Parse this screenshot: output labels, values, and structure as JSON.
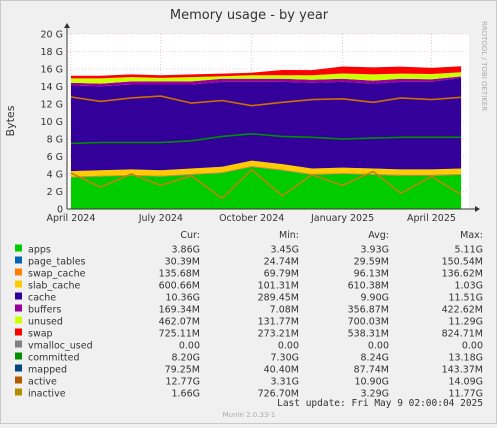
{
  "chart_data": {
    "type": "area",
    "title": "Memory usage - by year",
    "ylabel": "Bytes",
    "watermark": "RRDTOOL / TOBI OETIKER",
    "ylim": [
      0,
      20
    ],
    "yunit": "G",
    "yticks": [
      "0",
      "2 G",
      "4 G",
      "6 G",
      "8 G",
      "10 G",
      "12 G",
      "14 G",
      "16 G",
      "18 G",
      "20 G"
    ],
    "xlim": [
      "2024-03-28",
      "2025-05-09"
    ],
    "xticks": [
      {
        "date": "2024-04-01",
        "label": "April 2024"
      },
      {
        "date": "2024-07-01",
        "label": "July 2024"
      },
      {
        "date": "2024-10-01",
        "label": "October 2024"
      },
      {
        "date": "2025-01-01",
        "label": "January 2025"
      },
      {
        "date": "2025-04-01",
        "label": "April 2025"
      }
    ],
    "x": [
      "2024-04-01",
      "2024-05-01",
      "2024-06-01",
      "2024-07-01",
      "2024-08-01",
      "2024-09-01",
      "2024-10-01",
      "2024-11-01",
      "2024-12-01",
      "2025-01-01",
      "2025-02-01",
      "2025-03-01",
      "2025-04-01",
      "2025-05-01"
    ],
    "stack": [
      {
        "name": "apps",
        "color": "#00cc00",
        "values": [
          3.6,
          3.7,
          3.8,
          3.7,
          3.9,
          4.1,
          4.8,
          4.4,
          3.9,
          4.0,
          3.9,
          3.8,
          3.8,
          3.9
        ]
      },
      {
        "name": "page_tables",
        "color": "#0066b3",
        "values": [
          0.03,
          0.03,
          0.03,
          0.03,
          0.03,
          0.03,
          0.03,
          0.03,
          0.03,
          0.03,
          0.03,
          0.03,
          0.03,
          0.03
        ]
      },
      {
        "name": "swap_cache",
        "color": "#ff8000",
        "values": [
          0.1,
          0.1,
          0.1,
          0.1,
          0.1,
          0.1,
          0.1,
          0.1,
          0.1,
          0.1,
          0.1,
          0.1,
          0.1,
          0.1
        ]
      },
      {
        "name": "slab_cache",
        "color": "#ffcc00",
        "values": [
          0.6,
          0.6,
          0.6,
          0.6,
          0.6,
          0.6,
          0.6,
          0.6,
          0.6,
          0.6,
          0.6,
          0.6,
          0.6,
          0.6
        ]
      },
      {
        "name": "cache",
        "color": "#330099",
        "values": [
          9.8,
          9.6,
          9.7,
          9.8,
          9.6,
          9.7,
          9.0,
          9.4,
          9.8,
          9.8,
          9.7,
          10.0,
          10.0,
          10.36
        ]
      },
      {
        "name": "buffers",
        "color": "#990099",
        "values": [
          0.3,
          0.3,
          0.35,
          0.35,
          0.35,
          0.35,
          0.35,
          0.35,
          0.35,
          0.35,
          0.35,
          0.35,
          0.3,
          0.17
        ]
      },
      {
        "name": "unused",
        "color": "#ccff00",
        "values": [
          0.5,
          0.6,
          0.5,
          0.4,
          0.5,
          0.3,
          0.4,
          0.4,
          0.5,
          0.6,
          0.7,
          0.6,
          0.6,
          0.46
        ]
      },
      {
        "name": "swap",
        "color": "#ff0000",
        "values": [
          0.3,
          0.3,
          0.3,
          0.3,
          0.3,
          0.3,
          0.3,
          0.6,
          0.6,
          0.8,
          0.8,
          0.8,
          0.7,
          0.7
        ]
      }
    ],
    "lines": [
      {
        "name": "committed",
        "color": "#008f00",
        "values": [
          7.5,
          7.6,
          7.6,
          7.6,
          7.8,
          8.3,
          8.6,
          8.3,
          8.2,
          8.0,
          8.1,
          8.2,
          8.2,
          8.2
        ]
      },
      {
        "name": "active",
        "color": "#cc7000",
        "values": [
          12.8,
          12.3,
          12.7,
          12.9,
          12.1,
          12.4,
          11.8,
          12.2,
          12.5,
          12.6,
          12.2,
          12.7,
          12.5,
          12.77
        ]
      },
      {
        "name": "inactive",
        "color": "#b8860b",
        "values": [
          4.1,
          2.5,
          4.0,
          2.7,
          3.8,
          1.2,
          4.5,
          1.5,
          3.9,
          2.7,
          4.3,
          1.8,
          3.7,
          1.66
        ]
      }
    ],
    "legend_header": {
      "cur": "Cur:",
      "min": "Min:",
      "avg": "Avg:",
      "max": "Max:"
    },
    "legend": [
      {
        "name": "apps",
        "color": "#00cc00",
        "cur": "3.86G",
        "min": "3.45G",
        "avg": "3.93G",
        "max": "5.11G"
      },
      {
        "name": "page_tables",
        "color": "#0066b3",
        "cur": "30.39M",
        "min": "24.74M",
        "avg": "29.59M",
        "max": "150.54M"
      },
      {
        "name": "swap_cache",
        "color": "#ff8000",
        "cur": "135.68M",
        "min": "69.79M",
        "avg": "96.13M",
        "max": "136.62M"
      },
      {
        "name": "slab_cache",
        "color": "#ffcc00",
        "cur": "600.66M",
        "min": "101.31M",
        "avg": "610.38M",
        "max": "1.03G"
      },
      {
        "name": "cache",
        "color": "#330099",
        "cur": "10.36G",
        "min": "289.45M",
        "avg": "9.90G",
        "max": "11.51G"
      },
      {
        "name": "buffers",
        "color": "#990099",
        "cur": "169.34M",
        "min": "7.08M",
        "avg": "356.87M",
        "max": "422.62M"
      },
      {
        "name": "unused",
        "color": "#ccff00",
        "cur": "462.07M",
        "min": "131.77M",
        "avg": "700.03M",
        "max": "11.29G"
      },
      {
        "name": "swap",
        "color": "#ff0000",
        "cur": "725.11M",
        "min": "273.21M",
        "avg": "538.31M",
        "max": "824.71M"
      },
      {
        "name": "vmalloc_used",
        "color": "#808080",
        "cur": "0.00",
        "min": "0.00",
        "avg": "0.00",
        "max": "0.00"
      },
      {
        "name": "committed",
        "color": "#008f00",
        "cur": "8.20G",
        "min": "7.30G",
        "avg": "8.24G",
        "max": "13.18G"
      },
      {
        "name": "mapped",
        "color": "#00487d",
        "cur": "79.25M",
        "min": "40.40M",
        "avg": "87.74M",
        "max": "143.37M"
      },
      {
        "name": "active",
        "color": "#b35a00",
        "cur": "12.77G",
        "min": "3.31G",
        "avg": "10.90G",
        "max": "14.09G"
      },
      {
        "name": "inactive",
        "color": "#b38f00",
        "cur": "1.66G",
        "min": "726.70M",
        "avg": "3.29G",
        "max": "11.77G"
      }
    ],
    "last_update": "Last update:  Fri May  9 02:00:04 2025",
    "footer": "Munin 2.0.33-1"
  }
}
